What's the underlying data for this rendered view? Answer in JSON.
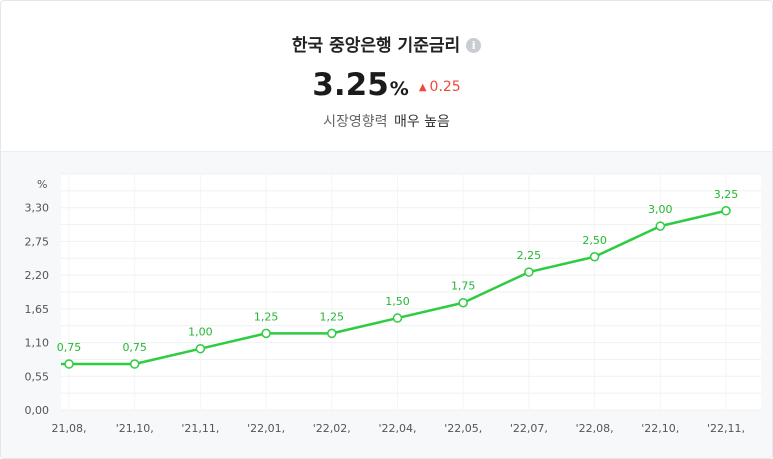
{
  "header": {
    "title": "한국 중앙은행 기준금리",
    "info_icon": "info-icon",
    "value": "3.25",
    "unit": "%",
    "change_arrow": "▲",
    "change": "0.25",
    "influence_label": "시장영향력",
    "influence_level": "매우 높음"
  },
  "colors": {
    "line": "#2ecc40",
    "label": "#22b833",
    "up": "#f0483e"
  },
  "chart_data": {
    "type": "line",
    "title": "",
    "xlabel": "",
    "ylabel": "%",
    "categories": [
      "21.08.",
      "'21.10.",
      "'21.11.",
      "'22.01.",
      "'22.02.",
      "'22.04.",
      "'22.05.",
      "'22.07.",
      "'22.08.",
      "'22.10.",
      "'22.11."
    ],
    "series": [
      {
        "values": [
          0.75,
          0.75,
          1.0,
          1.25,
          1.25,
          1.5,
          1.75,
          2.25,
          2.5,
          3.0,
          3.25
        ],
        "labels": [
          "0.75",
          "0.75",
          "1.00",
          "1.25",
          "1.25",
          "1.50",
          "1.75",
          "2.25",
          "2.50",
          "3.00",
          "3.25"
        ]
      }
    ],
    "y_ticks": [
      "0.00",
      "0.55",
      "1.10",
      "1.65",
      "2.20",
      "2.75",
      "3.30"
    ],
    "ylim": [
      0,
      3.85
    ],
    "grid": true,
    "legend": "none"
  }
}
